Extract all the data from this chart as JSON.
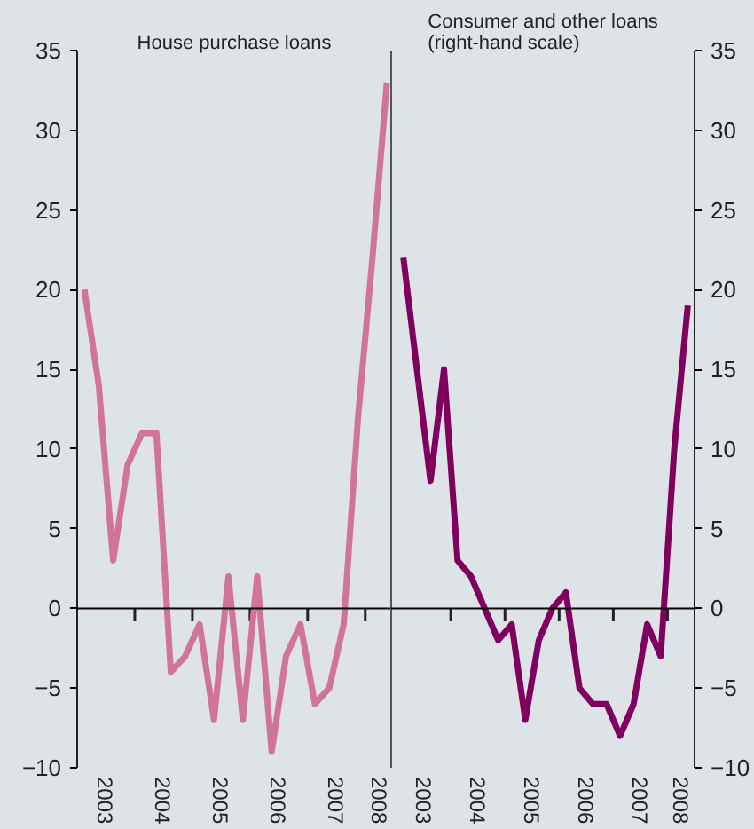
{
  "chart_data": [
    {
      "type": "line",
      "title": "House purchase loans",
      "x": [
        2003.125,
        2003.375,
        2003.625,
        2003.875,
        2004.125,
        2004.375,
        2004.625,
        2004.875,
        2005.125,
        2005.375,
        2005.625,
        2005.875,
        2006.125,
        2006.375,
        2006.625,
        2006.875,
        2007.125,
        2007.375,
        2007.625,
        2007.875,
        2008.125,
        2008.375
      ],
      "series": [
        {
          "color": "#d07498",
          "values": [
            20,
            14,
            3,
            9,
            11,
            11,
            -4,
            -3,
            -1,
            -7,
            2,
            -7,
            2,
            -9,
            -3,
            -1,
            -6,
            -5,
            -1,
            12,
            22,
            33
          ]
        }
      ],
      "xlim": [
        2003,
        2008.45
      ],
      "xticks": [
        {
          "value": 2004,
          "label": null
        },
        {
          "value": 2005,
          "label": null
        },
        {
          "value": 2006,
          "label": null
        },
        {
          "value": 2007,
          "label": null
        },
        {
          "value": 2008,
          "label": null
        },
        {
          "value": 2003.5,
          "label": "2003"
        },
        {
          "value": 2004.5,
          "label": "2004"
        },
        {
          "value": 2005.5,
          "label": "2005"
        },
        {
          "value": 2006.5,
          "label": "2006"
        },
        {
          "value": 2007.5,
          "label": "2007"
        },
        {
          "value": 2008.25,
          "label": "2008"
        }
      ],
      "ylim": [
        -10,
        35
      ],
      "yticks": [
        -10,
        -5,
        0,
        5,
        10,
        15,
        20,
        25,
        30,
        35
      ],
      "ref_lines": [
        {
          "axis": "y",
          "value": 0,
          "color": "#000000"
        }
      ],
      "grid": false,
      "marker": "none",
      "line_style": "solid"
    },
    {
      "type": "line",
      "title": "Consumer and other loans\n(right-hand scale)",
      "x": [
        2003.125,
        2003.375,
        2003.625,
        2003.875,
        2004.125,
        2004.375,
        2004.625,
        2004.875,
        2005.125,
        2005.375,
        2005.625,
        2005.875,
        2006.125,
        2006.375,
        2006.625,
        2006.875,
        2007.125,
        2007.375,
        2007.625,
        2007.875,
        2008.125,
        2008.375
      ],
      "series": [
        {
          "color": "#800060",
          "axis": "y2",
          "values": [
            22,
            15,
            8,
            15,
            3,
            2,
            0,
            -2,
            -1,
            -7,
            -2,
            0,
            1,
            -5,
            -6,
            -6,
            -8,
            -6,
            -1,
            -3,
            10,
            19
          ]
        }
      ],
      "xlim": [
        2002.9,
        2008.5
      ],
      "xticks": [
        {
          "value": 2004,
          "label": null
        },
        {
          "value": 2005,
          "label": null
        },
        {
          "value": 2006,
          "label": null
        },
        {
          "value": 2007,
          "label": null
        },
        {
          "value": 2008,
          "label": null
        },
        {
          "value": 2003.5,
          "label": "2003"
        },
        {
          "value": 2004.5,
          "label": "2004"
        },
        {
          "value": 2005.5,
          "label": "2005"
        },
        {
          "value": 2006.5,
          "label": "2006"
        },
        {
          "value": 2007.5,
          "label": "2007"
        },
        {
          "value": 2008.25,
          "label": "2008"
        }
      ],
      "y2lim": [
        -10,
        35
      ],
      "y2ticks": [
        -10,
        -5,
        0,
        5,
        10,
        15,
        20,
        25,
        30,
        35
      ],
      "ref_lines": [
        {
          "axis": "y2",
          "value": 0,
          "color": "#000000"
        }
      ],
      "grid": false,
      "marker": "none",
      "line_style": "solid"
    }
  ]
}
